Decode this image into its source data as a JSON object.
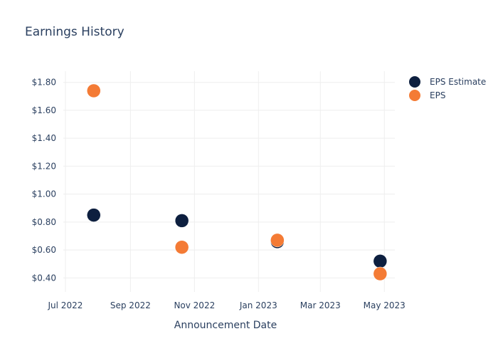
{
  "chart_data": {
    "type": "scatter",
    "title": "Earnings History",
    "xlabel": "Announcement Date",
    "ylabel": "",
    "x_tick_labels": [
      "Jul 2022",
      "Sep 2022",
      "Nov 2022",
      "Jan 2023",
      "Mar 2023",
      "May 2023"
    ],
    "x_ticks": [
      "2022-07-01",
      "2022-09-01",
      "2022-11-01",
      "2023-01-01",
      "2023-03-01",
      "2023-05-01"
    ],
    "y_tick_labels": [
      "$0.40",
      "$0.60",
      "$0.80",
      "$1.00",
      "$1.20",
      "$1.40",
      "$1.60",
      "$1.80"
    ],
    "y_ticks": [
      0.4,
      0.6,
      0.8,
      1.0,
      1.2,
      1.4,
      1.6,
      1.8
    ],
    "xlim": [
      "2022-06-29",
      "2023-05-11"
    ],
    "ylim": [
      0.3,
      1.88
    ],
    "grid": true,
    "legend_position": "top-right",
    "series": [
      {
        "name": "EPS Estimate",
        "color": "#0d1f3f",
        "points": [
          {
            "x": "2022-07-28",
            "y": 0.85
          },
          {
            "x": "2022-10-20",
            "y": 0.81
          },
          {
            "x": "2023-01-19",
            "y": 0.66
          },
          {
            "x": "2023-04-27",
            "y": 0.52
          }
        ]
      },
      {
        "name": "EPS",
        "color": "#f47b35",
        "points": [
          {
            "x": "2022-07-28",
            "y": 1.74
          },
          {
            "x": "2022-10-20",
            "y": 0.62
          },
          {
            "x": "2023-01-19",
            "y": 0.67
          },
          {
            "x": "2023-04-27",
            "y": 0.43
          }
        ]
      }
    ]
  }
}
